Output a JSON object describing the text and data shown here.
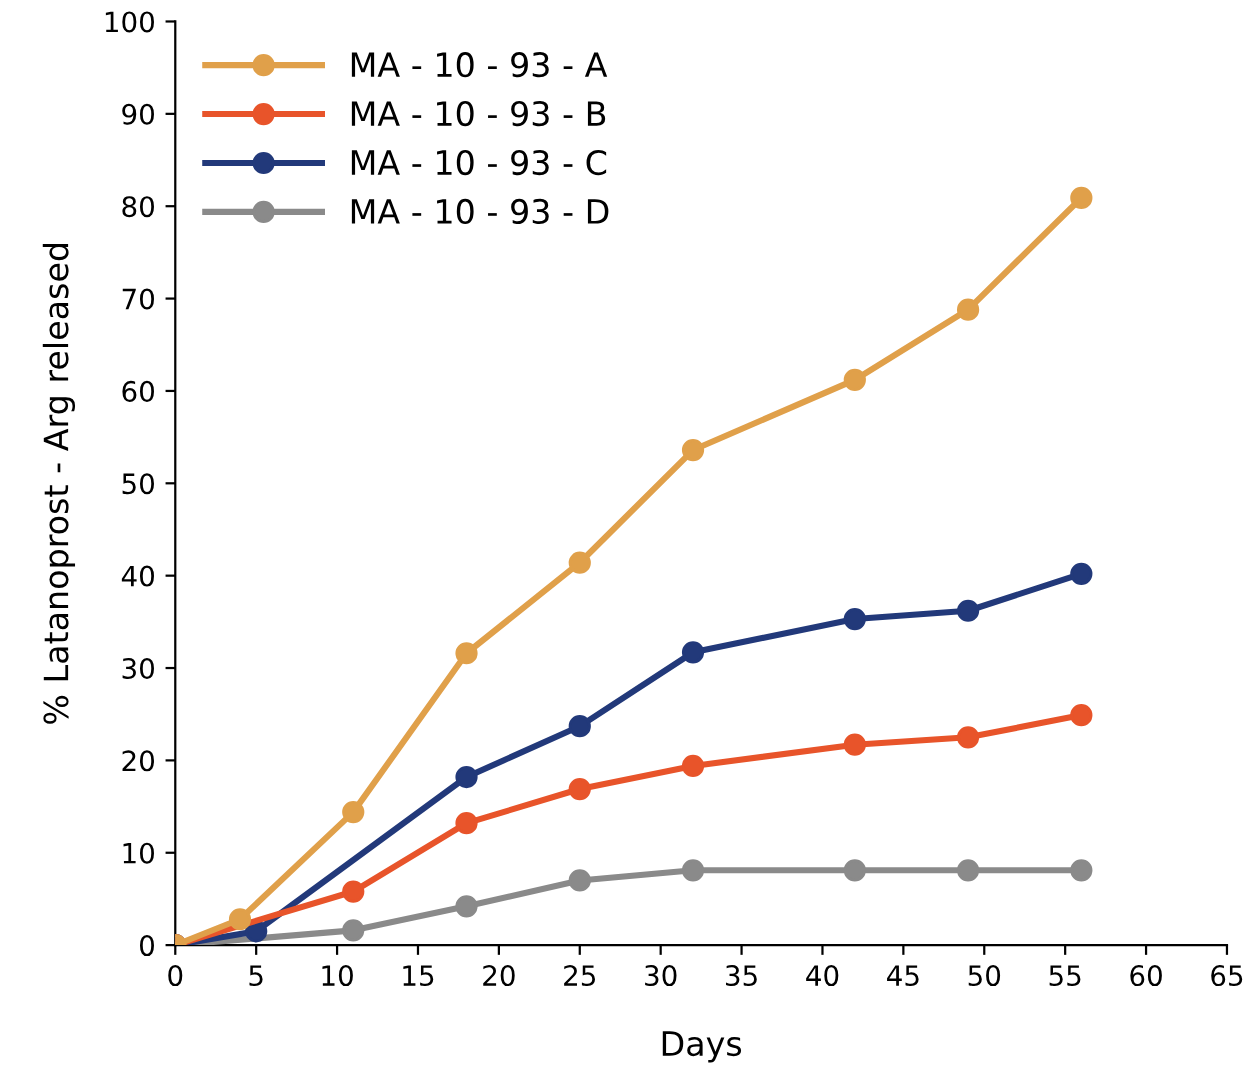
{
  "chart_data": {
    "type": "line",
    "xlabel": "Days",
    "ylabel": "% Latanoprost - Arg released",
    "xlim": [
      0,
      65
    ],
    "xticks": [
      0,
      5,
      10,
      15,
      20,
      25,
      30,
      35,
      40,
      45,
      50,
      55,
      60,
      65
    ],
    "ylim": [
      0,
      100
    ],
    "yticks": [
      0,
      10,
      20,
      30,
      40,
      50,
      60,
      70,
      80,
      90,
      100
    ],
    "grid": false,
    "legend": "top left",
    "marker": "circle",
    "line_style": "solid",
    "series": [
      {
        "name": "MA - 10 - 93 - A",
        "color": "#e0a04a",
        "x": [
          0,
          4,
          11,
          18,
          25,
          32,
          42,
          49,
          56
        ],
        "values": [
          0,
          2.8,
          14.4,
          31.6,
          41.4,
          53.6,
          61.2,
          68.8,
          80.9
        ]
      },
      {
        "name": "MA - 10 - 93 - B",
        "color": "#e8542a",
        "x": [
          0,
          11,
          18,
          25,
          32,
          42,
          49,
          56
        ],
        "values": [
          0,
          5.8,
          13.2,
          16.9,
          19.4,
          21.7,
          22.5,
          24.9
        ]
      },
      {
        "name": "MA - 10 - 93 - C",
        "color": "#22397a",
        "x": [
          0,
          5,
          18,
          25,
          32,
          42,
          49,
          56
        ],
        "values": [
          0,
          1.5,
          18.2,
          23.7,
          31.7,
          35.3,
          36.2,
          40.2
        ]
      },
      {
        "name": "MA - 10 - 93 - D",
        "color": "#8a8a8a",
        "x": [
          0,
          11,
          18,
          25,
          32,
          42,
          49,
          56
        ],
        "values": [
          0,
          1.6,
          4.2,
          7.0,
          8.1,
          8.1,
          8.1,
          8.1
        ]
      }
    ]
  }
}
